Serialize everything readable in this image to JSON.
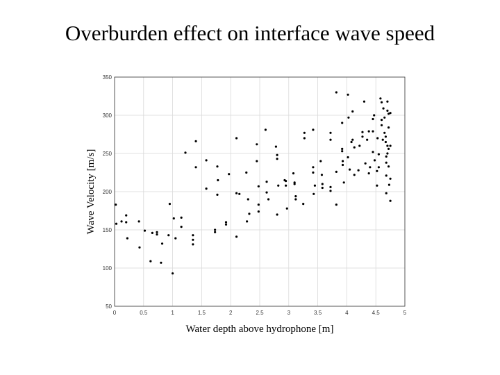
{
  "slide": {
    "title": "Overburden effect on interface wave speed"
  },
  "chart_data": {
    "type": "scatter",
    "xlabel": "Water depth above hydrophone [m]",
    "ylabel": "Wave Velocity [m/s]",
    "xlim": [
      0,
      5
    ],
    "ylim": [
      50,
      350
    ],
    "xticks": [
      "0",
      "0.5",
      "1",
      "1.5",
      "2",
      "2.5",
      "3",
      "3.5",
      "4",
      "4.5",
      "5"
    ],
    "yticks": [
      "50",
      "100",
      "150",
      "200",
      "250",
      "300",
      "350"
    ],
    "grid": true,
    "color": "#000000",
    "series": [
      {
        "points": [
          [
            0.02,
            183
          ],
          [
            0.03,
            158
          ],
          [
            0.12,
            161
          ],
          [
            0.2,
            169
          ],
          [
            0.2,
            160
          ],
          [
            0.22,
            139
          ],
          [
            0.42,
            161
          ],
          [
            0.43,
            127
          ],
          [
            0.52,
            149
          ],
          [
            0.62,
            109
          ],
          [
            0.65,
            146
          ],
          [
            0.73,
            147
          ],
          [
            0.73,
            144
          ],
          [
            0.8,
            107
          ],
          [
            0.82,
            132
          ],
          [
            0.93,
            143
          ],
          [
            0.95,
            184
          ],
          [
            1.0,
            93
          ],
          [
            1.02,
            165
          ],
          [
            1.05,
            139
          ],
          [
            1.15,
            166
          ],
          [
            1.15,
            154
          ],
          [
            1.22,
            251
          ],
          [
            1.35,
            143
          ],
          [
            1.35,
            137
          ],
          [
            1.35,
            131
          ],
          [
            1.4,
            266
          ],
          [
            1.4,
            232
          ],
          [
            1.58,
            241
          ],
          [
            1.58,
            204
          ],
          [
            1.73,
            150
          ],
          [
            1.73,
            147
          ],
          [
            1.77,
            233
          ],
          [
            1.77,
            196
          ],
          [
            1.78,
            215
          ],
          [
            1.92,
            157
          ],
          [
            1.92,
            160
          ],
          [
            1.97,
            223
          ],
          [
            2.1,
            270
          ],
          [
            2.1,
            198
          ],
          [
            2.1,
            141
          ],
          [
            2.15,
            197
          ],
          [
            2.27,
            225
          ],
          [
            2.28,
            161
          ],
          [
            2.3,
            190
          ],
          [
            2.32,
            171
          ],
          [
            2.45,
            262
          ],
          [
            2.45,
            240
          ],
          [
            2.48,
            207
          ],
          [
            2.48,
            183
          ],
          [
            2.48,
            174
          ],
          [
            2.6,
            281
          ],
          [
            2.62,
            199
          ],
          [
            2.62,
            213
          ],
          [
            2.65,
            190
          ],
          [
            2.78,
            259
          ],
          [
            2.8,
            248
          ],
          [
            2.8,
            243
          ],
          [
            2.8,
            170
          ],
          [
            2.82,
            208
          ],
          [
            2.93,
            215
          ],
          [
            2.95,
            214
          ],
          [
            2.95,
            208
          ],
          [
            2.97,
            178
          ],
          [
            3.08,
            224
          ],
          [
            3.1,
            212
          ],
          [
            3.1,
            210
          ],
          [
            3.12,
            194
          ],
          [
            3.12,
            190
          ],
          [
            3.25,
            184
          ],
          [
            3.27,
            277
          ],
          [
            3.27,
            270
          ],
          [
            3.42,
            281
          ],
          [
            3.42,
            232
          ],
          [
            3.42,
            225
          ],
          [
            3.43,
            197
          ],
          [
            3.45,
            208
          ],
          [
            3.55,
            240
          ],
          [
            3.57,
            222
          ],
          [
            3.58,
            210
          ],
          [
            3.58,
            205
          ],
          [
            3.72,
            277
          ],
          [
            3.72,
            268
          ],
          [
            3.72,
            206
          ],
          [
            3.72,
            201
          ],
          [
            3.82,
            330
          ],
          [
            3.82,
            226
          ],
          [
            3.82,
            183
          ],
          [
            3.92,
            290
          ],
          [
            3.92,
            256
          ],
          [
            3.92,
            253
          ],
          [
            3.93,
            240
          ],
          [
            3.93,
            235
          ],
          [
            3.95,
            212
          ],
          [
            4.02,
            327
          ],
          [
            4.02,
            245
          ],
          [
            4.03,
            297
          ],
          [
            4.05,
            229
          ],
          [
            4.08,
            265
          ],
          [
            4.1,
            305
          ],
          [
            4.1,
            268
          ],
          [
            4.13,
            258
          ],
          [
            4.13,
            222
          ],
          [
            4.2,
            228
          ],
          [
            4.22,
            260
          ],
          [
            4.27,
            278
          ],
          [
            4.27,
            272
          ],
          [
            4.3,
            318
          ],
          [
            4.32,
            237
          ],
          [
            4.35,
            268
          ],
          [
            4.38,
            279
          ],
          [
            4.38,
            224
          ],
          [
            4.4,
            232
          ],
          [
            4.45,
            295
          ],
          [
            4.45,
            279
          ],
          [
            4.45,
            252
          ],
          [
            4.47,
            300
          ],
          [
            4.48,
            241
          ],
          [
            4.52,
            208
          ],
          [
            4.52,
            227
          ],
          [
            4.53,
            270
          ],
          [
            4.55,
            249
          ],
          [
            4.55,
            232
          ],
          [
            4.58,
            322
          ],
          [
            4.6,
            317
          ],
          [
            4.6,
            294
          ],
          [
            4.6,
            287
          ],
          [
            4.62,
            268
          ],
          [
            4.63,
            309
          ],
          [
            4.65,
            297
          ],
          [
            4.65,
            277
          ],
          [
            4.67,
            272
          ],
          [
            4.67,
            265
          ],
          [
            4.68,
            246
          ],
          [
            4.68,
            238
          ],
          [
            4.68,
            221
          ],
          [
            4.68,
            198
          ],
          [
            4.7,
            318
          ],
          [
            4.7,
            306
          ],
          [
            4.7,
            260
          ],
          [
            4.7,
            250
          ],
          [
            4.72,
            302
          ],
          [
            4.72,
            284
          ],
          [
            4.72,
            256
          ],
          [
            4.72,
            233
          ],
          [
            4.73,
            209
          ],
          [
            4.75,
            303
          ],
          [
            4.75,
            260
          ],
          [
            4.75,
            217
          ],
          [
            4.75,
            188
          ]
        ]
      }
    ]
  }
}
